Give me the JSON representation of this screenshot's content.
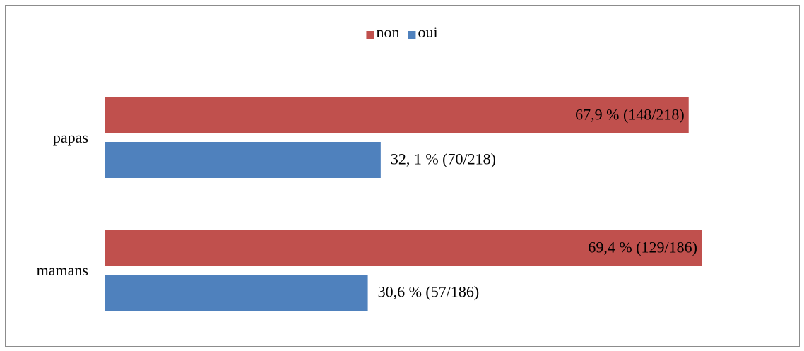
{
  "chart_data": {
    "type": "bar",
    "orientation": "horizontal",
    "categories": [
      "papas",
      "mamans"
    ],
    "series": [
      {
        "name": "non",
        "color": "#c0504d",
        "values": [
          67.9,
          69.4
        ],
        "value_labels": [
          "67,9 % (148/218)",
          "69,4 % (129/186)"
        ]
      },
      {
        "name": "oui",
        "color": "#4f81bd",
        "values": [
          32.1,
          30.6
        ],
        "value_labels": [
          "32, 1 % (70/218)",
          "30,6 % (57/186)"
        ]
      }
    ],
    "legend": "top"
  }
}
